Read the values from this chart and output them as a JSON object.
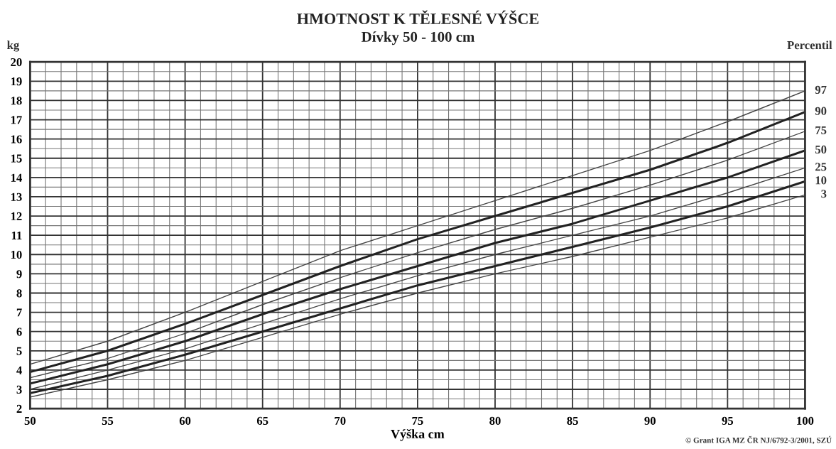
{
  "chart_data": {
    "type": "line",
    "title": "HMOTNOST K TĚLESNÉ VÝŠCE",
    "subtitle": "Dívky 50 - 100 cm",
    "xlabel": "Výška cm",
    "ylabel": "kg",
    "legend_title": "Percentil",
    "annotations": [
      "© Grant IGA MZ ČR NJ/6792-3/2001, SZÚ"
    ],
    "x": [
      50,
      55,
      60,
      65,
      70,
      75,
      80,
      85,
      90,
      95,
      100
    ],
    "series": [
      {
        "name": "97",
        "color": "#444444",
        "values": [
          4.3,
          5.5,
          7.0,
          8.6,
          10.2,
          11.5,
          12.8,
          14.1,
          15.4,
          16.9,
          18.5
        ]
      },
      {
        "name": "90",
        "color": "#222222",
        "values": [
          3.9,
          5.0,
          6.4,
          7.9,
          9.4,
          10.8,
          12.0,
          13.2,
          14.4,
          15.8,
          17.4
        ]
      },
      {
        "name": "75",
        "color": "#444444",
        "values": [
          3.6,
          4.6,
          5.9,
          7.4,
          8.8,
          10.1,
          11.3,
          12.4,
          13.6,
          14.9,
          16.4
        ]
      },
      {
        "name": "50",
        "color": "#222222",
        "values": [
          3.3,
          4.3,
          5.5,
          6.9,
          8.2,
          9.4,
          10.6,
          11.6,
          12.8,
          14.0,
          15.4
        ]
      },
      {
        "name": "25",
        "color": "#444444",
        "values": [
          3.0,
          4.0,
          5.1,
          6.4,
          7.7,
          8.9,
          10.0,
          11.0,
          12.0,
          13.2,
          14.5
        ]
      },
      {
        "name": "10",
        "color": "#222222",
        "values": [
          2.8,
          3.7,
          4.8,
          6.0,
          7.2,
          8.4,
          9.4,
          10.4,
          11.4,
          12.5,
          13.8
        ]
      },
      {
        "name": "3",
        "color": "#444444",
        "values": [
          2.6,
          3.5,
          4.5,
          5.7,
          6.9,
          8.0,
          9.0,
          9.9,
          10.9,
          11.9,
          13.1
        ]
      }
    ],
    "xlim": [
      50,
      100
    ],
    "xticks": [
      50,
      55,
      60,
      65,
      70,
      75,
      80,
      85,
      90,
      95,
      100
    ],
    "ylim": [
      2,
      20
    ],
    "yticks": [
      2,
      3,
      4,
      5,
      6,
      7,
      8,
      9,
      10,
      11,
      12,
      13,
      14,
      15,
      16,
      17,
      18,
      19,
      20
    ],
    "grid": true,
    "legend": "right",
    "marker": "none",
    "line_style": "solid"
  }
}
